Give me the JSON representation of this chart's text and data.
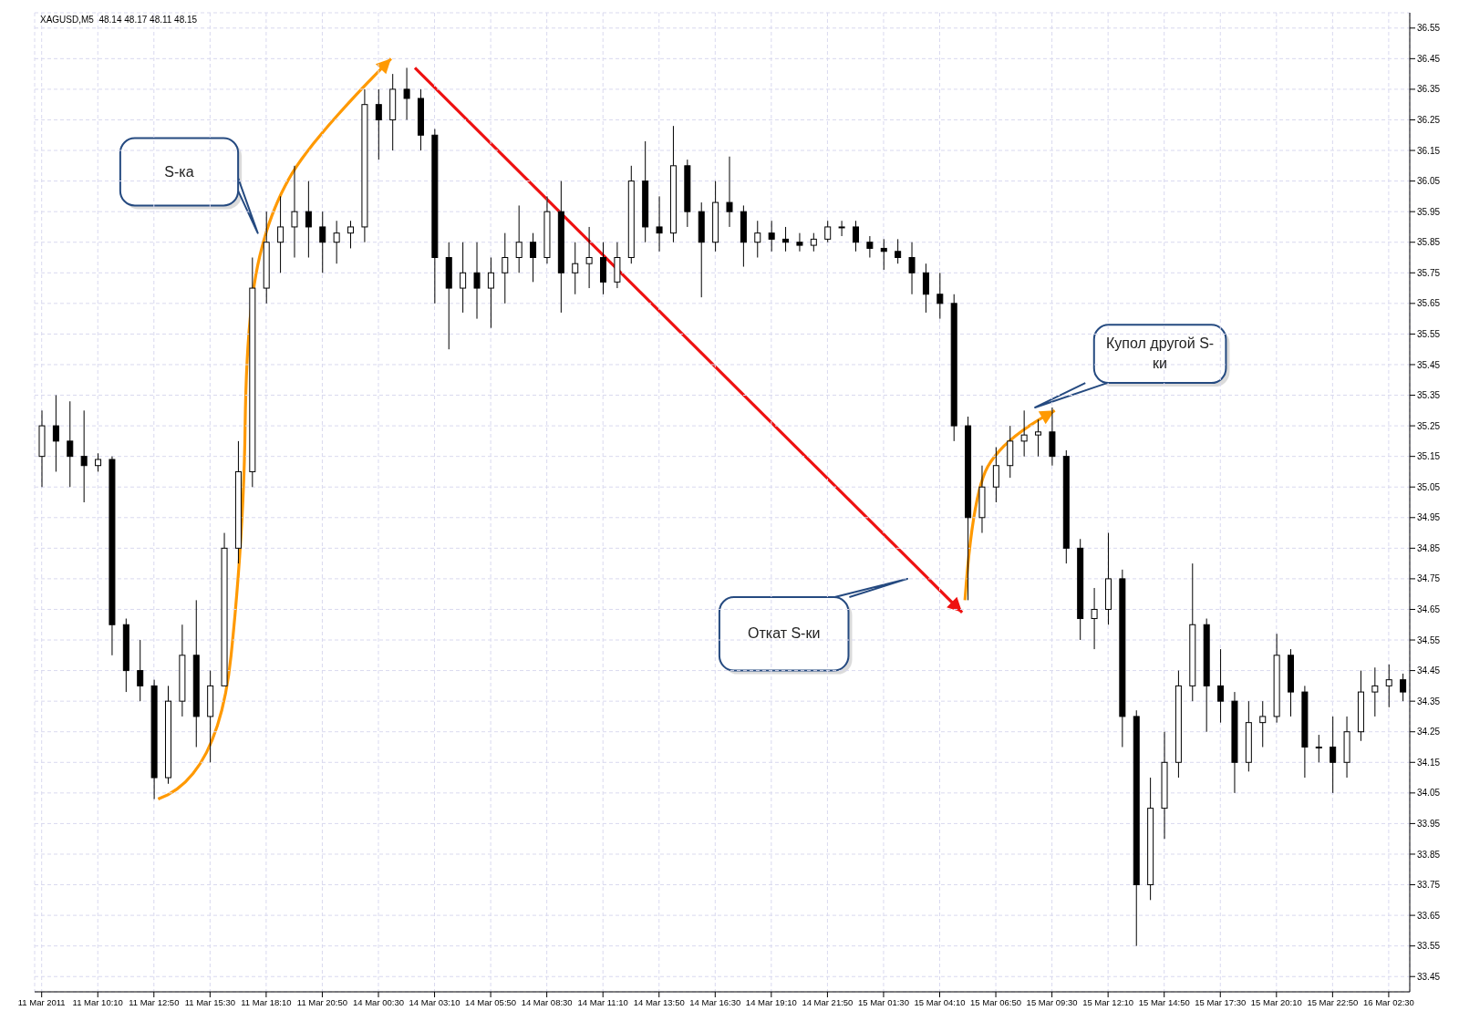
{
  "chart_data": {
    "type": "candlestick",
    "title": "XAGUSD,M5  48.14 48.17 48.11 48.15",
    "annotations": [
      "S-ка",
      "Купол другой S-ки",
      "Откат S-ки"
    ],
    "categories": [
      "11 Mar 2011",
      null,
      null,
      null,
      "11 Mar 10:10",
      null,
      null,
      null,
      "11 Mar 12:50",
      null,
      null,
      null,
      "11 Mar 15:30",
      null,
      null,
      null,
      "11 Mar 18:10",
      null,
      null,
      null,
      "11 Mar 20:50",
      null,
      null,
      null,
      "14 Mar 00:30",
      null,
      null,
      null,
      "14 Mar 03:10",
      null,
      null,
      null,
      "14 Mar 05:50",
      null,
      null,
      null,
      "14 Mar 08:30",
      null,
      null,
      null,
      "14 Mar 11:10",
      null,
      null,
      null,
      "14 Mar 13:50",
      null,
      null,
      null,
      "14 Mar 16:30",
      null,
      null,
      null,
      "14 Mar 19:10",
      null,
      null,
      null,
      "14 Mar 21:50",
      null,
      null,
      null,
      "15 Mar 01:30",
      null,
      null,
      null,
      "15 Mar 04:10",
      null,
      null,
      null,
      "15 Mar 06:50",
      null,
      null,
      null,
      "15 Mar 09:30",
      null,
      null,
      null,
      "15 Mar 12:10",
      null,
      null,
      null,
      "15 Mar 14:50",
      null,
      null,
      null,
      "15 Mar 17:30",
      null,
      null,
      null,
      "15 Mar 20:10",
      null,
      null,
      null,
      "15 Mar 22:50",
      null,
      null,
      null,
      "16 Mar 02:30",
      null
    ],
    "ohlc": [
      [
        35.15,
        35.3,
        35.05,
        35.25
      ],
      [
        35.25,
        35.35,
        35.1,
        35.2
      ],
      [
        35.2,
        35.33,
        35.05,
        35.15
      ],
      [
        35.15,
        35.3,
        35.0,
        35.12
      ],
      [
        35.12,
        35.16,
        35.1,
        35.14
      ],
      [
        35.14,
        35.15,
        34.5,
        34.6
      ],
      [
        34.6,
        34.62,
        34.38,
        34.45
      ],
      [
        34.45,
        34.55,
        34.35,
        34.4
      ],
      [
        34.4,
        34.42,
        34.03,
        34.1
      ],
      [
        34.1,
        34.4,
        34.08,
        34.35
      ],
      [
        34.35,
        34.6,
        34.3,
        34.5
      ],
      [
        34.5,
        34.68,
        34.2,
        34.3
      ],
      [
        34.3,
        34.45,
        34.15,
        34.4
      ],
      [
        34.4,
        34.9,
        34.4,
        34.85
      ],
      [
        34.85,
        35.2,
        34.8,
        35.1
      ],
      [
        35.1,
        35.8,
        35.05,
        35.7
      ],
      [
        35.7,
        35.95,
        35.65,
        35.85
      ],
      [
        35.85,
        36.0,
        35.75,
        35.9
      ],
      [
        35.9,
        36.1,
        35.8,
        35.95
      ],
      [
        35.95,
        36.05,
        35.8,
        35.9
      ],
      [
        35.9,
        35.95,
        35.75,
        35.85
      ],
      [
        35.85,
        35.92,
        35.78,
        35.88
      ],
      [
        35.88,
        35.92,
        35.83,
        35.9
      ],
      [
        35.9,
        36.35,
        35.85,
        36.3
      ],
      [
        36.3,
        36.35,
        36.12,
        36.25
      ],
      [
        36.25,
        36.4,
        36.15,
        36.35
      ],
      [
        36.35,
        36.42,
        36.25,
        36.32
      ],
      [
        36.32,
        36.35,
        36.15,
        36.2
      ],
      [
        36.2,
        36.22,
        35.65,
        35.8
      ],
      [
        35.8,
        35.85,
        35.5,
        35.7
      ],
      [
        35.7,
        35.85,
        35.62,
        35.75
      ],
      [
        35.75,
        35.85,
        35.6,
        35.7
      ],
      [
        35.7,
        35.8,
        35.57,
        35.75
      ],
      [
        35.75,
        35.88,
        35.65,
        35.8
      ],
      [
        35.8,
        35.97,
        35.75,
        35.85
      ],
      [
        35.85,
        35.88,
        35.72,
        35.8
      ],
      [
        35.8,
        36.0,
        35.78,
        35.95
      ],
      [
        35.95,
        36.05,
        35.62,
        35.75
      ],
      [
        35.75,
        35.85,
        35.68,
        35.78
      ],
      [
        35.78,
        35.9,
        35.7,
        35.8
      ],
      [
        35.8,
        35.85,
        35.68,
        35.72
      ],
      [
        35.72,
        35.85,
        35.7,
        35.8
      ],
      [
        35.8,
        36.1,
        35.78,
        36.05
      ],
      [
        36.05,
        36.18,
        35.85,
        35.9
      ],
      [
        35.9,
        36.0,
        35.82,
        35.88
      ],
      [
        35.88,
        36.23,
        35.85,
        36.1
      ],
      [
        36.1,
        36.12,
        35.9,
        35.95
      ],
      [
        35.95,
        35.98,
        35.67,
        35.85
      ],
      [
        35.85,
        36.05,
        35.82,
        35.98
      ],
      [
        35.98,
        36.13,
        35.9,
        35.95
      ],
      [
        35.95,
        35.97,
        35.77,
        35.85
      ],
      [
        35.85,
        35.92,
        35.8,
        35.88
      ],
      [
        35.88,
        35.92,
        35.82,
        35.86
      ],
      [
        35.86,
        35.9,
        35.82,
        35.85
      ],
      [
        35.85,
        35.88,
        35.82,
        35.84
      ],
      [
        35.84,
        35.88,
        35.82,
        35.86
      ],
      [
        35.86,
        35.92,
        35.85,
        35.9
      ],
      [
        35.9,
        35.92,
        35.87,
        35.9
      ],
      [
        35.9,
        35.92,
        35.82,
        35.85
      ],
      [
        35.85,
        35.87,
        35.8,
        35.83
      ],
      [
        35.83,
        35.86,
        35.76,
        35.82
      ],
      [
        35.82,
        35.86,
        35.78,
        35.8
      ],
      [
        35.8,
        35.85,
        35.68,
        35.75
      ],
      [
        35.75,
        35.78,
        35.62,
        35.68
      ],
      [
        35.68,
        35.75,
        35.6,
        35.65
      ],
      [
        35.65,
        35.68,
        35.2,
        35.25
      ],
      [
        35.25,
        35.28,
        34.68,
        34.95
      ],
      [
        34.95,
        35.12,
        34.9,
        35.05
      ],
      [
        35.05,
        35.18,
        35.0,
        35.12
      ],
      [
        35.12,
        35.25,
        35.08,
        35.2
      ],
      [
        35.2,
        35.3,
        35.15,
        35.22
      ],
      [
        35.22,
        35.27,
        35.15,
        35.23
      ],
      [
        35.23,
        35.31,
        35.12,
        35.15
      ],
      [
        35.15,
        35.17,
        34.8,
        34.85
      ],
      [
        34.85,
        34.88,
        34.55,
        34.62
      ],
      [
        34.62,
        34.72,
        34.52,
        34.65
      ],
      [
        34.65,
        34.9,
        34.6,
        34.75
      ],
      [
        34.75,
        34.78,
        34.2,
        34.3
      ],
      [
        34.3,
        34.32,
        33.55,
        33.75
      ],
      [
        33.75,
        34.1,
        33.7,
        34.0
      ],
      [
        34.0,
        34.25,
        33.9,
        34.15
      ],
      [
        34.15,
        34.45,
        34.1,
        34.4
      ],
      [
        34.4,
        34.8,
        34.35,
        34.6
      ],
      [
        34.6,
        34.62,
        34.25,
        34.4
      ],
      [
        34.4,
        34.52,
        34.28,
        34.35
      ],
      [
        34.35,
        34.38,
        34.05,
        34.15
      ],
      [
        34.15,
        34.35,
        34.12,
        34.28
      ],
      [
        34.28,
        34.35,
        34.2,
        34.3
      ],
      [
        34.3,
        34.57,
        34.28,
        34.5
      ],
      [
        34.5,
        34.52,
        34.3,
        34.38
      ],
      [
        34.38,
        34.4,
        34.1,
        34.2
      ],
      [
        34.2,
        34.24,
        34.15,
        34.2
      ],
      [
        34.2,
        34.3,
        34.05,
        34.15
      ],
      [
        34.15,
        34.3,
        34.1,
        34.25
      ],
      [
        34.25,
        34.45,
        34.22,
        34.38
      ],
      [
        34.38,
        34.46,
        34.3,
        34.4
      ],
      [
        34.4,
        34.47,
        34.33,
        34.42
      ],
      [
        34.42,
        34.44,
        34.35,
        34.38
      ]
    ],
    "color": "#000000",
    "ylim": [
      33.4,
      36.6
    ],
    "yticks": [
      33.45,
      33.55,
      33.65,
      33.75,
      33.85,
      33.95,
      34.05,
      34.15,
      34.25,
      34.35,
      34.45,
      34.55,
      34.65,
      34.75,
      34.85,
      34.95,
      35.05,
      35.15,
      35.25,
      35.35,
      35.45,
      35.55,
      35.65,
      35.75,
      35.85,
      35.95,
      36.05,
      36.15,
      36.25,
      36.35,
      36.45,
      36.55
    ],
    "grid": true
  }
}
